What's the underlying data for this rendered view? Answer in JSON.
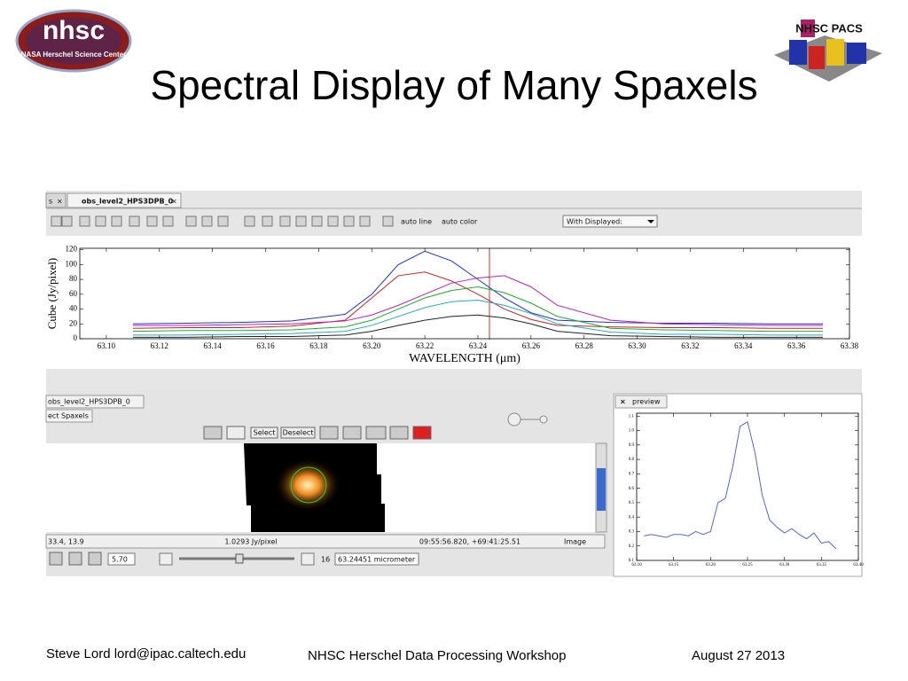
{
  "header": {
    "logo_left_title": "nhsc",
    "logo_left_subtitle": "NASA Herschel Science Center",
    "logo_right": "NHSC PACS",
    "title": "Spectral Display of Many Spaxels"
  },
  "screenshot": {
    "tabs": [
      "s",
      "obs_level2_HPS3DPB_0"
    ],
    "toolbar": [
      "auto line",
      "auto color",
      "With Displayed:"
    ],
    "panel_tabs": [
      "obs_level2_HPS3DPB_0",
      "ect Spaxels"
    ],
    "buttons": [
      "Select",
      "Deselect"
    ],
    "status": [
      "33.4, 13.9",
      "1.0293 Jy/pixel",
      "09:55:56.820, +69:41:25.51",
      "Image"
    ],
    "controls": [
      "5.70",
      "16",
      "63.24451 micrometer"
    ],
    "preview_tab": "preview"
  },
  "chart_data": [
    {
      "type": "line",
      "x_label": "WAVELENGTH (μm)",
      "y_label": "Cube (Jy/pixel)",
      "x": [
        63.11,
        63.13,
        63.15,
        63.17,
        63.19,
        63.2,
        63.21,
        63.22,
        63.23,
        63.24,
        63.25,
        63.26,
        63.27,
        63.29,
        63.31,
        63.33,
        63.35,
        63.37
      ],
      "series": [
        {
          "color": "#2233cc",
          "values": [
            20,
            21,
            22,
            24,
            33,
            60,
            100,
            118,
            105,
            80,
            55,
            35,
            25,
            22,
            21,
            21,
            20,
            20
          ]
        },
        {
          "color": "#cc2222",
          "values": [
            14,
            15,
            15,
            17,
            25,
            55,
            85,
            90,
            78,
            60,
            40,
            26,
            18,
            16,
            15,
            15,
            14,
            14
          ]
        },
        {
          "color": "#bb22bb",
          "values": [
            18,
            18,
            19,
            20,
            24,
            32,
            45,
            60,
            75,
            82,
            85,
            70,
            45,
            25,
            20,
            19,
            18,
            18
          ]
        },
        {
          "color": "#22aa33",
          "values": [
            10,
            11,
            11,
            12,
            16,
            25,
            40,
            55,
            65,
            70,
            62,
            48,
            30,
            14,
            12,
            11,
            10,
            10
          ]
        },
        {
          "color": "#22aacc",
          "values": [
            5,
            5,
            6,
            7,
            10,
            18,
            30,
            42,
            50,
            52,
            45,
            34,
            20,
            9,
            6,
            6,
            5,
            5
          ]
        },
        {
          "color": "#222222",
          "values": [
            2,
            2,
            3,
            3,
            5,
            10,
            18,
            25,
            30,
            32,
            28,
            20,
            10,
            4,
            3,
            2,
            2,
            2
          ]
        }
      ],
      "xlim": [
        63.09,
        63.38
      ],
      "ylim": [
        0,
        122
      ],
      "xticks": [
        {
          "value": 63.1,
          "label": "63.10"
        },
        63.12,
        63.14,
        63.16,
        63.18,
        {
          "value": 63.2,
          "label": "63.20"
        },
        63.22,
        63.24,
        63.26,
        63.28,
        {
          "value": 63.3,
          "label": "63.30"
        },
        63.32,
        63.34,
        63.36,
        63.38
      ],
      "yticks": [
        0,
        20,
        40,
        60,
        80,
        100,
        120
      ]
    },
    {
      "type": "line",
      "x": [
        63.11,
        63.12,
        63.13,
        63.14,
        63.15,
        63.16,
        63.17,
        63.18,
        63.19,
        63.2,
        63.21,
        63.22,
        63.23,
        63.24,
        63.25,
        63.26,
        63.27,
        63.28,
        63.29,
        63.3,
        63.31,
        63.32,
        63.33,
        63.34,
        63.35,
        63.36,
        63.37
      ],
      "series": [
        {
          "color": "#5566cc",
          "values": [
            0.27,
            0.28,
            0.27,
            0.26,
            0.28,
            0.28,
            0.27,
            0.3,
            0.28,
            0.3,
            0.5,
            0.53,
            0.75,
            1.03,
            1.06,
            0.85,
            0.55,
            0.38,
            0.33,
            0.29,
            0.32,
            0.28,
            0.25,
            0.29,
            0.22,
            0.23,
            0.18
          ]
        }
      ],
      "xlim": [
        63.1,
        63.4
      ],
      "ylim": [
        0.1,
        1.12
      ],
      "xticks": [
        {
          "value": 63.1,
          "label": "63.10"
        },
        63.15,
        {
          "value": 63.2,
          "label": "63.20"
        },
        63.25,
        {
          "value": 63.3,
          "label": "63.30"
        },
        63.35,
        {
          "value": 63.4,
          "label": "63.40"
        }
      ],
      "yticks": [
        0.1,
        0.2,
        0.3,
        0.4,
        0.5,
        0.6,
        0.7,
        0.8,
        0.9,
        {
          "value": 1,
          "label": "1.0"
        },
        1.1
      ]
    }
  ],
  "footer": {
    "author": "Steve Lord lord@ipac.caltech.edu",
    "event": "NHSC Herschel Data Processing Workshop",
    "date": "August 27 2013"
  }
}
